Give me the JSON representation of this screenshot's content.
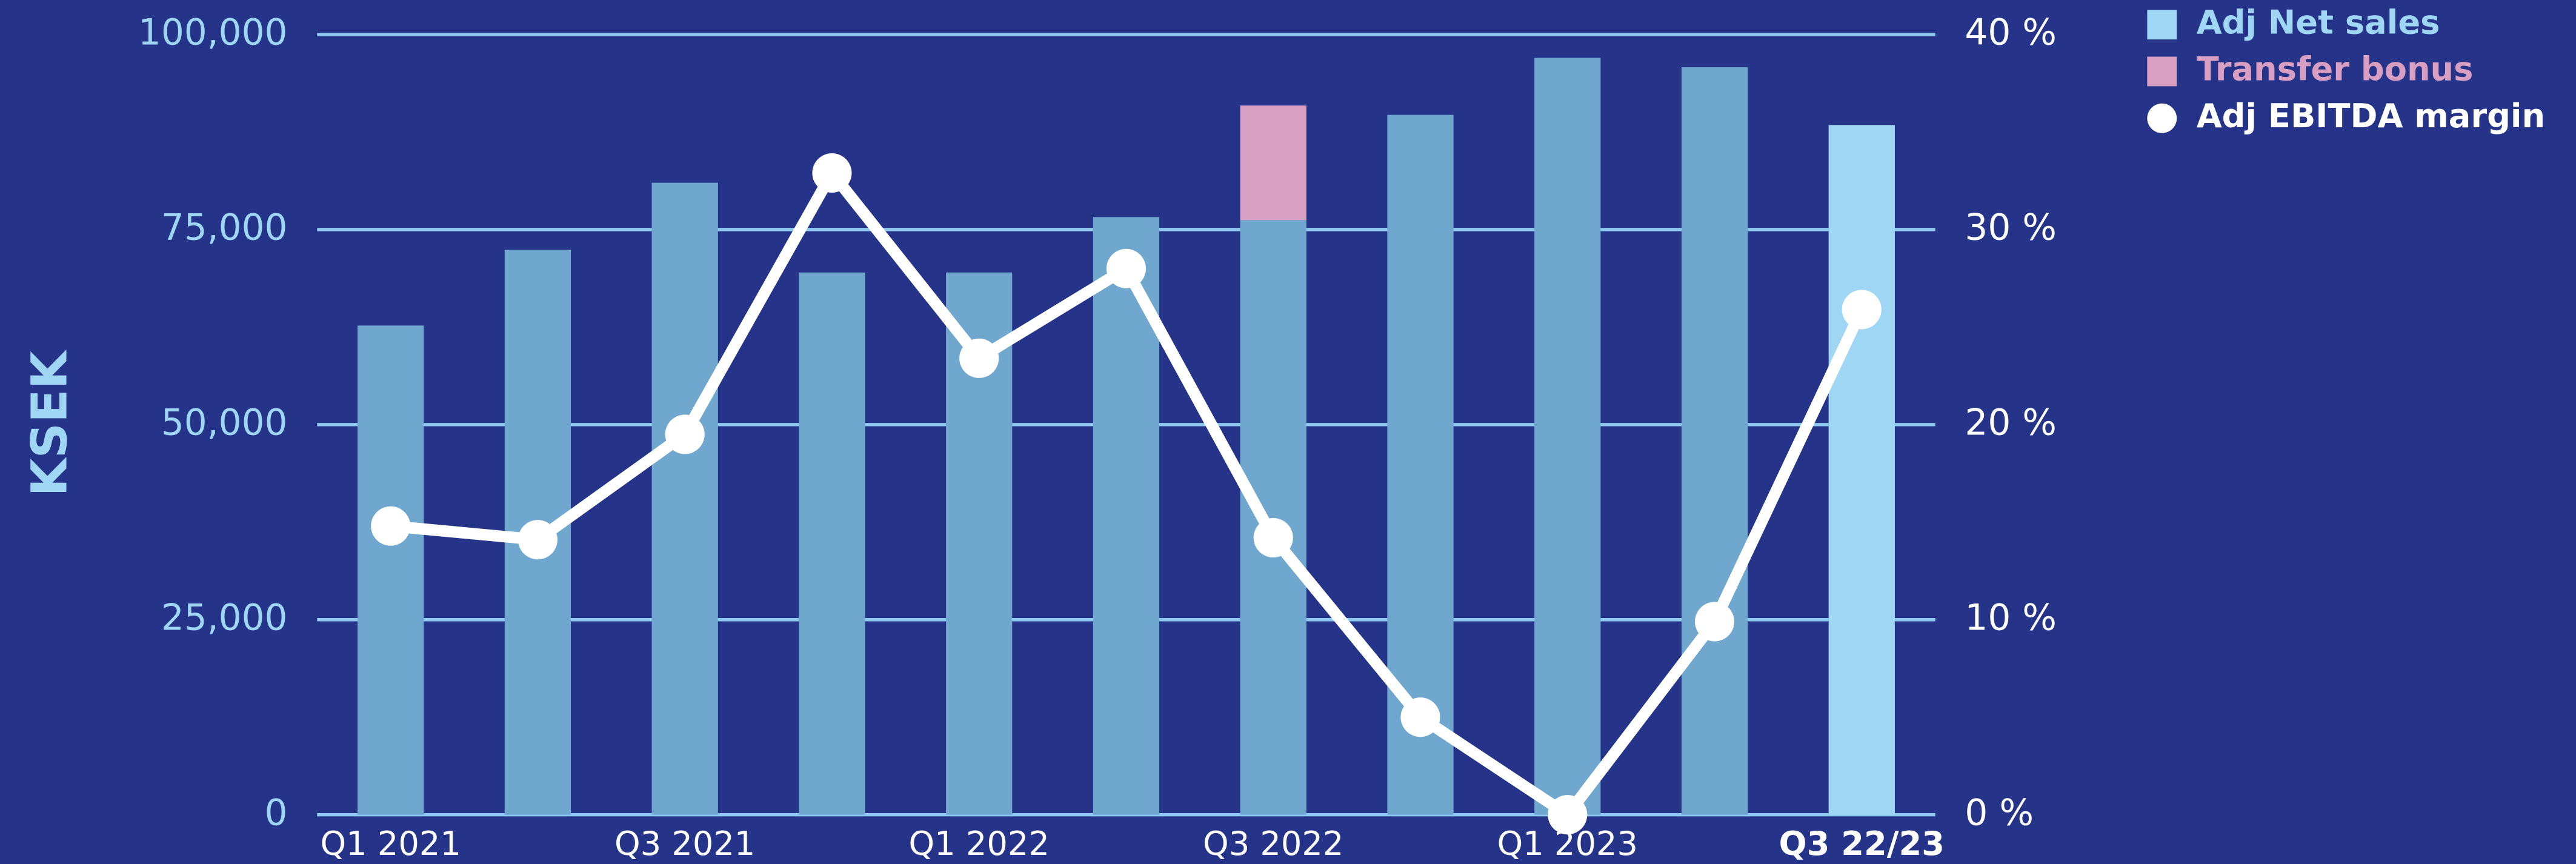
{
  "chart_data": {
    "type": "bar",
    "y_label": "KSEK",
    "categories": [
      "Q1 2021",
      null,
      "Q3 2021",
      null,
      "Q1 2022",
      null,
      "Q3 2022",
      null,
      "Q1 2023",
      null,
      "Q3 22/23"
    ],
    "series": [
      {
        "name": "Adj Net sales",
        "color": "#9fd6f4",
        "colors": [
          "#6fa7cf",
          "#6fa7cf",
          "#6fa7cf",
          "#6fa7cf",
          "#6fa7cf",
          "#6fa7cf",
          "#6fa7cf",
          "#6fa7cf",
          "#6fa7cf",
          "#6fa7cf",
          "#9fd6f4"
        ],
        "values": [
          62700,
          72400,
          81000,
          69500,
          69500,
          76600,
          76200,
          89700,
          97000,
          95800,
          88400
        ]
      },
      {
        "name": "Transfer bonus",
        "color": "#d89fc3",
        "values": [
          null,
          null,
          null,
          null,
          null,
          null,
          14700,
          null,
          null,
          null,
          null
        ]
      },
      {
        "name": "Adj EBITDA margin",
        "color": "#ffffff",
        "axis": "y2",
        "type": "line",
        "values": [
          14.8,
          14.1,
          19.5,
          32.9,
          23.4,
          28.0,
          14.2,
          5.0,
          0,
          9.9,
          25.9
        ]
      }
    ],
    "ylim": [
      0,
      100000
    ],
    "yticks": [
      0,
      {
        "value": 25000,
        "label": "25,000"
      },
      {
        "value": 50000,
        "label": "50,000"
      },
      {
        "value": 75000,
        "label": "75,000"
      },
      {
        "value": 100000,
        "label": "100,000"
      }
    ],
    "y2lim": [
      0,
      40
    ],
    "y2ticks": [
      {
        "value": 0,
        "label": "0 %"
      },
      {
        "value": 10,
        "label": "10 %"
      },
      {
        "value": 20,
        "label": "20 %"
      },
      {
        "value": 30,
        "label": "30 %"
      },
      {
        "value": 40,
        "label": "40 %"
      }
    ],
    "grid": true,
    "legend": "top-right"
  }
}
